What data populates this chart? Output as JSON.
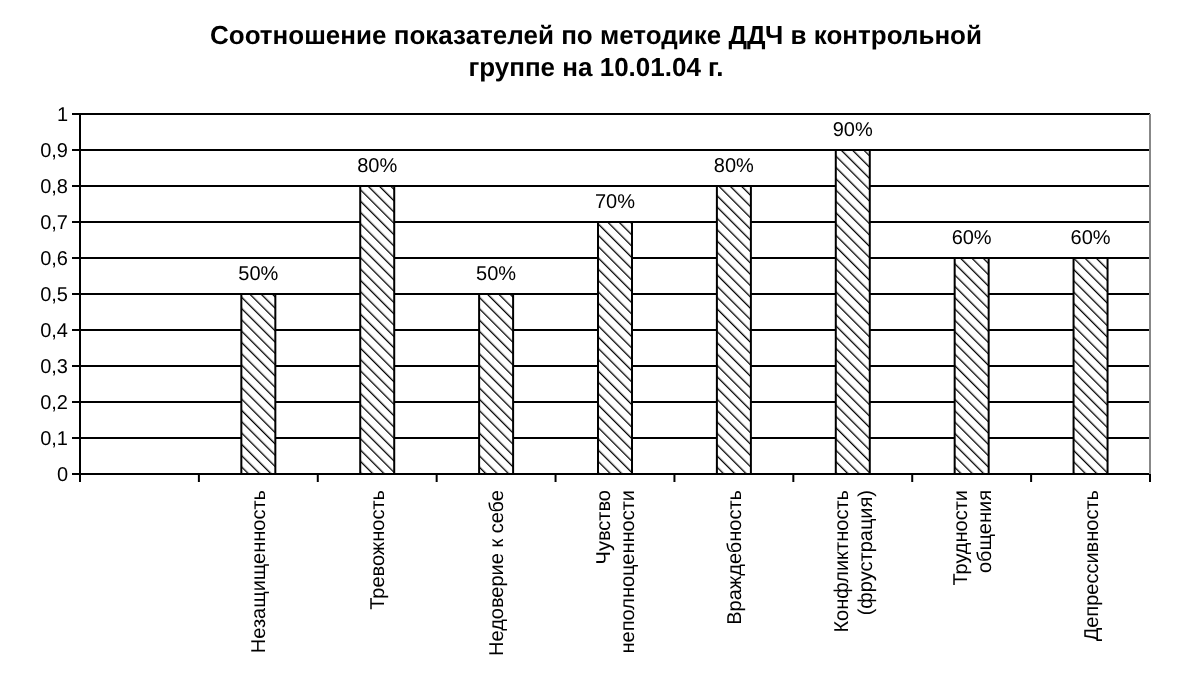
{
  "chart_data": {
    "type": "bar",
    "title": "Соотношение показателей по методике ДДЧ в контрольной\nгруппе на 10.01.04 г.",
    "categories": [
      null,
      "Незащищенность",
      "Тревожность",
      "Недоверие к себе",
      "Чувство\nнеполноценности",
      "Враждебность",
      "Конфликтность\n(фрустрация)",
      "Трудности\nобщения",
      "Депрессивность"
    ],
    "values": [
      null,
      0.5,
      0.8,
      0.5,
      0.7,
      0.8,
      0.9,
      0.6,
      0.6
    ],
    "value_labels": [
      null,
      "50%",
      "80%",
      "50%",
      "70%",
      "80%",
      "90%",
      "60%",
      "60%"
    ],
    "color": "#000000",
    "ylim": [
      0,
      1
    ],
    "yticks": [
      {
        "value": 0,
        "label": "0"
      },
      {
        "value": 0.1,
        "label": "0,1"
      },
      {
        "value": 0.2,
        "label": "0,2"
      },
      {
        "value": 0.3,
        "label": "0,3"
      },
      {
        "value": 0.4,
        "label": "0,4"
      },
      {
        "value": 0.5,
        "label": "0,5"
      },
      {
        "value": 0.6,
        "label": "0,6"
      },
      {
        "value": 0.7,
        "label": "0,7"
      },
      {
        "value": 0.8,
        "label": "0,8"
      },
      {
        "value": 0.9,
        "label": "0,9"
      },
      {
        "value": 1,
        "label": "1"
      }
    ],
    "grid": "y"
  }
}
